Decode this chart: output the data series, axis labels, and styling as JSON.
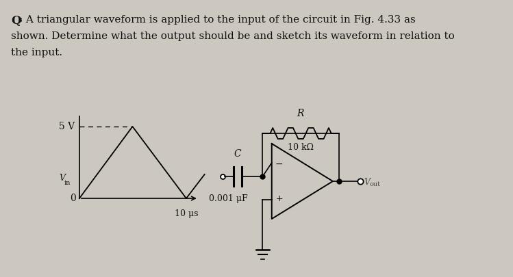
{
  "bg_color": "#ccc8c0",
  "text_color": "#111111",
  "waveform_label_5v": "5 V",
  "waveform_label_0": "0",
  "waveform_label_vin": "V_in",
  "waveform_label_10us": "10 μs",
  "capacitor_label": "C",
  "capacitor_value": "0.001 μF",
  "resistor_label": "R",
  "resistor_value": "10 kΩ",
  "minus_sign": "−",
  "plus_sign": "+"
}
